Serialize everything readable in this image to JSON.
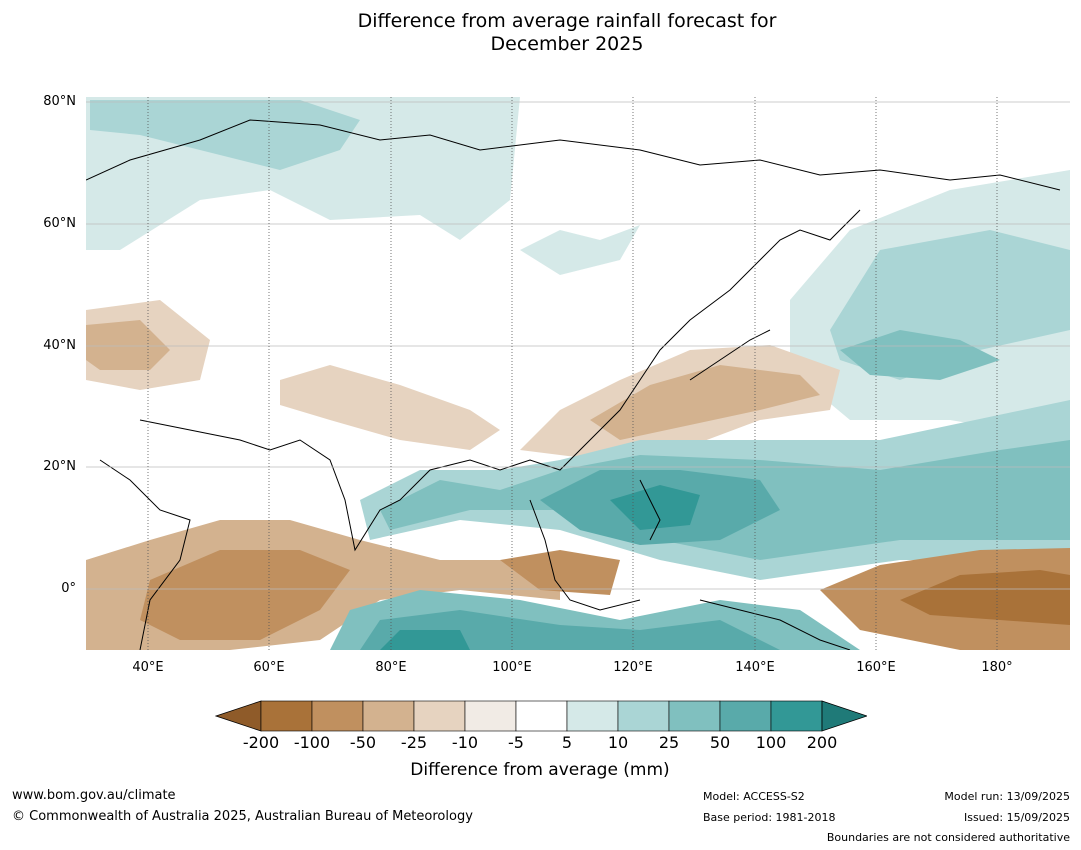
{
  "title": {
    "line1": "Difference from average rainfall forecast for",
    "line2": "December 2025"
  },
  "lat_labels": [
    "80°N",
    "60°N",
    "40°N",
    "20°N",
    "0°"
  ],
  "lon_labels": [
    "40°E",
    "60°E",
    "80°E",
    "100°E",
    "120°E",
    "140°E",
    "160°E",
    "180°"
  ],
  "colorbar": {
    "ticks": [
      "-200",
      "-100",
      "-50",
      "-25",
      "-10",
      "-5",
      "5",
      "10",
      "25",
      "50",
      "100",
      "200"
    ],
    "colors": [
      "#8f5b29",
      "#a97239",
      "#c0905f",
      "#d3b28f",
      "#e6d3c0",
      "#f1ebe5",
      "#ffffff",
      "#d5e9e8",
      "#aad5d5",
      "#80c0bf",
      "#59aaaa",
      "#329896",
      "#1f7a78"
    ],
    "label": "Difference from average (mm)"
  },
  "footer": {
    "url": "www.bom.gov.au/climate",
    "copyright": "© Commonwealth of Australia 2025, Australian Bureau of Meteorology",
    "model": "Model: ACCESS-S2",
    "base_period": "Base period: 1981-2018",
    "model_run": "Model run: 13/09/2025",
    "issued": "Issued: 15/09/2025",
    "disclaimer": "Boundaries are not considered authoritative"
  }
}
